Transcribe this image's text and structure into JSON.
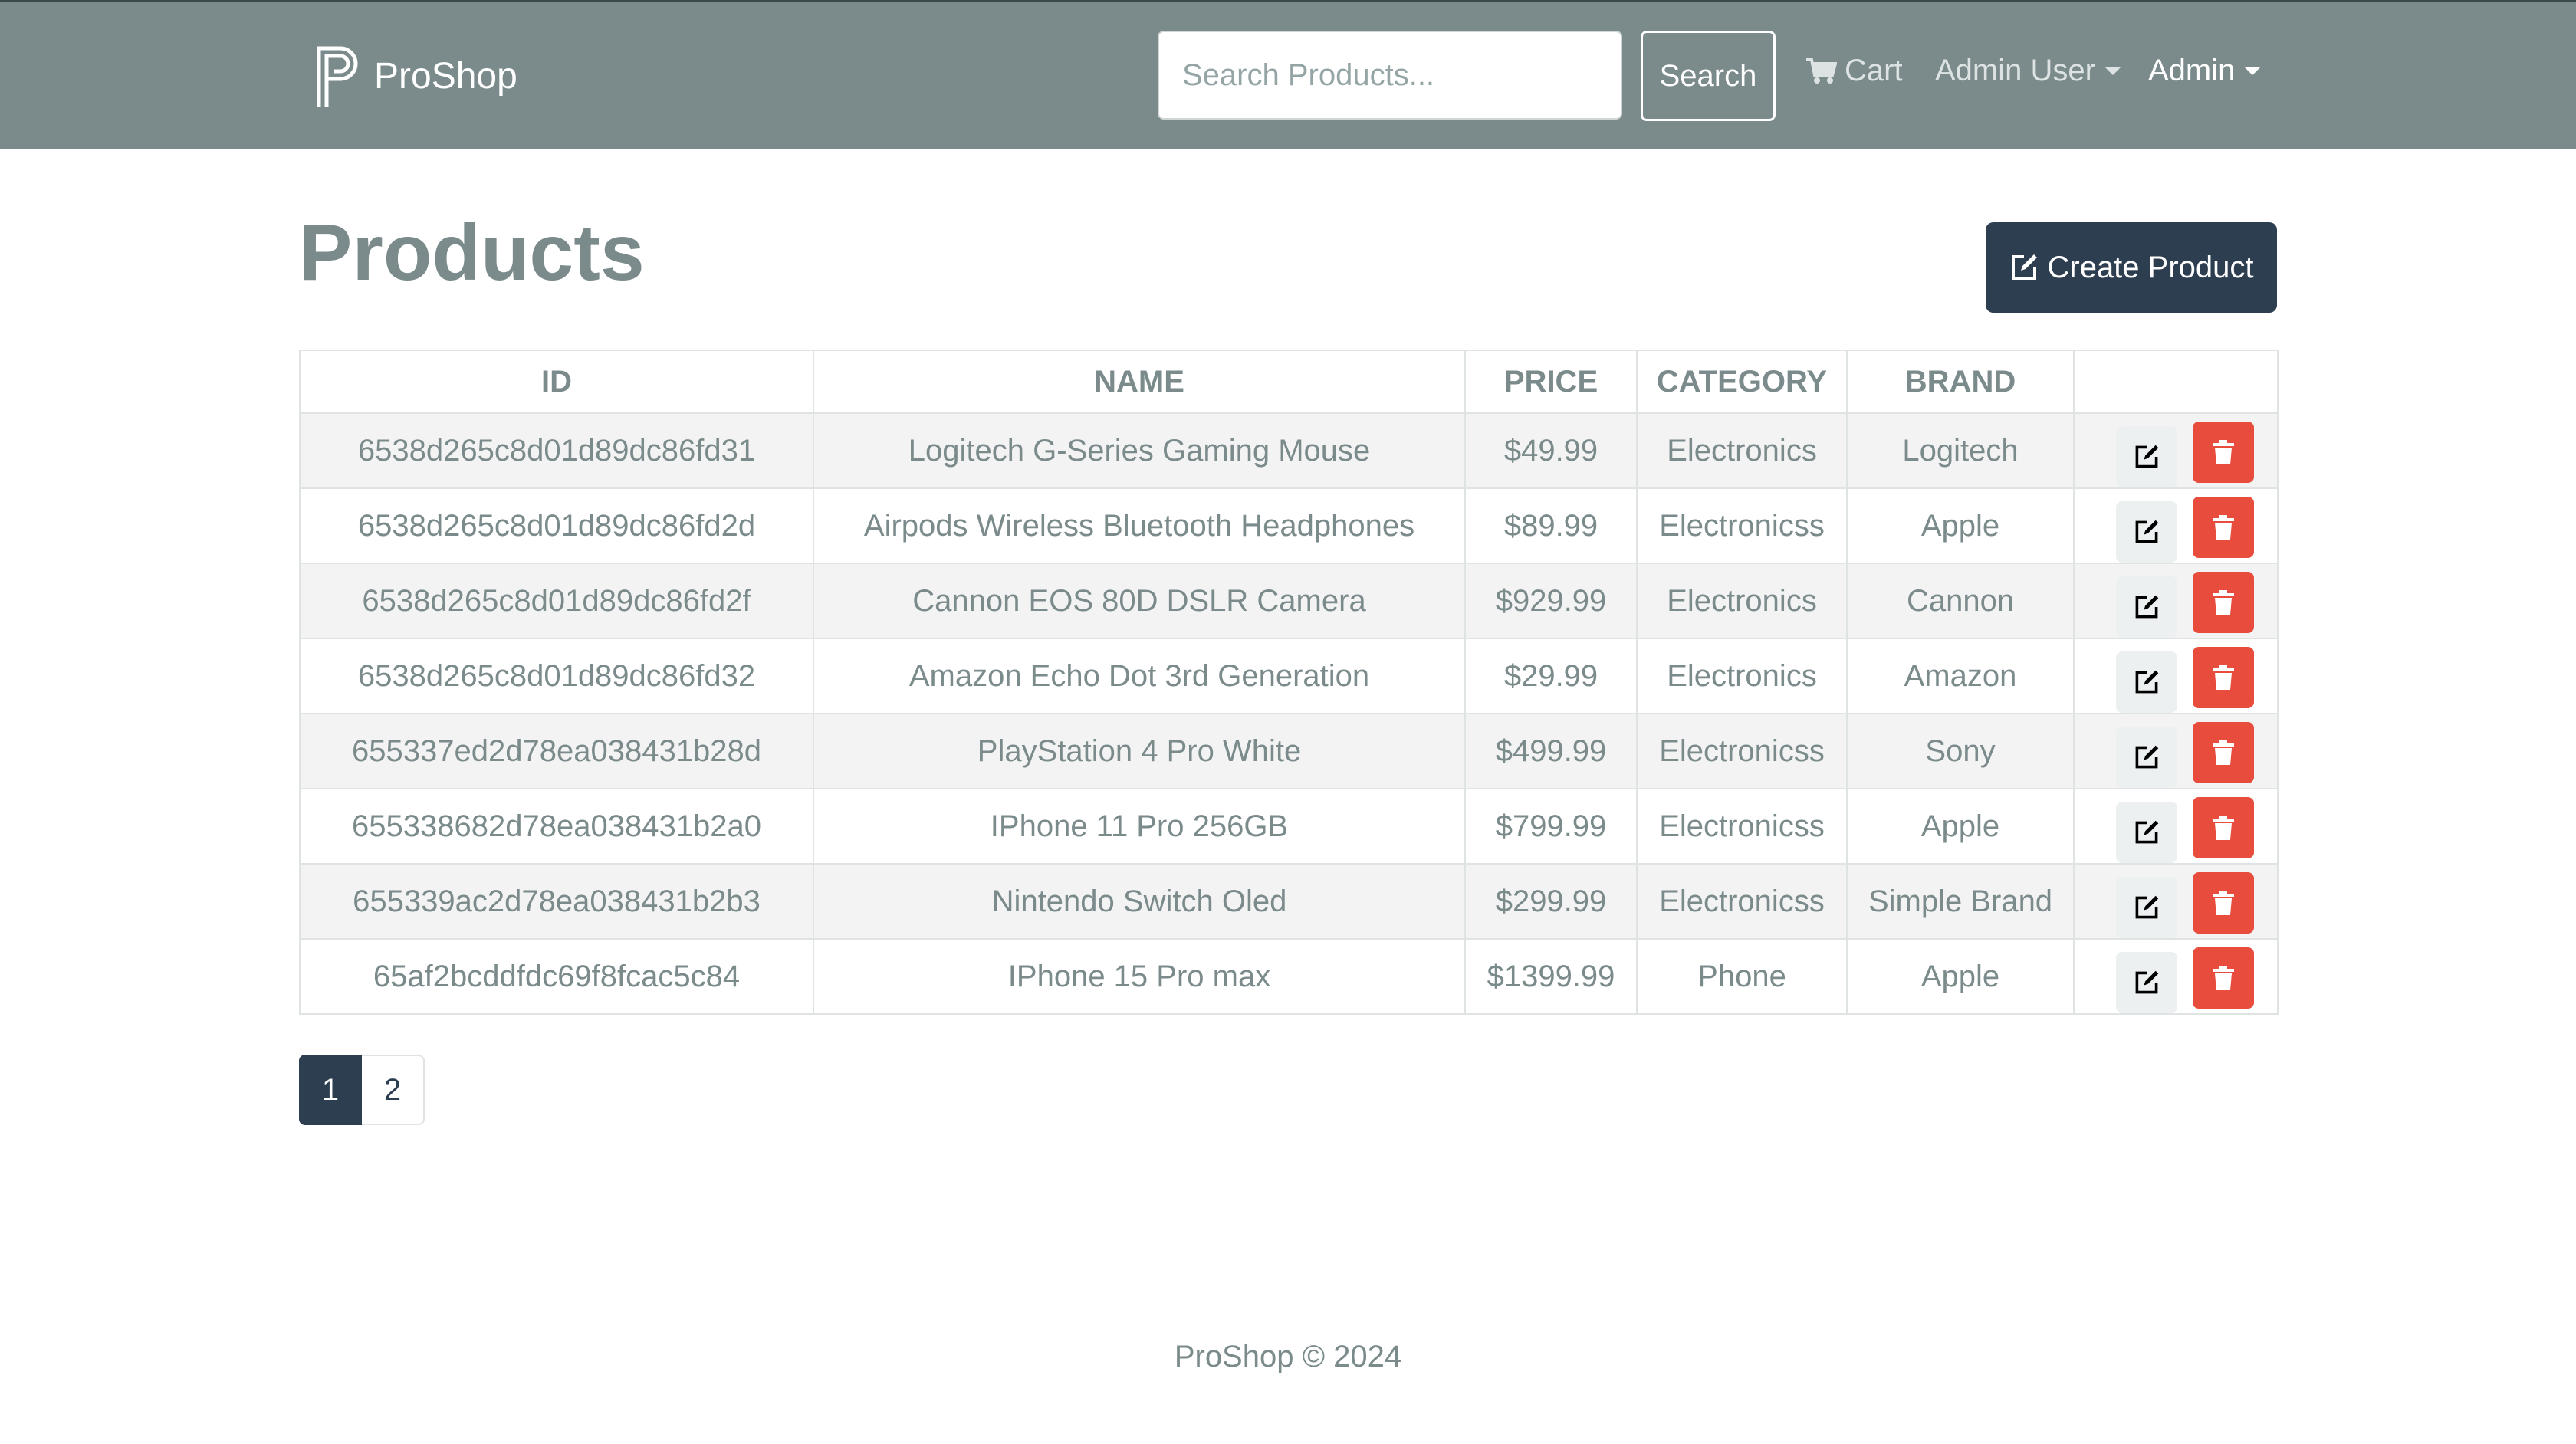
{
  "navbar": {
    "brand": "ProShop",
    "search_placeholder": "Search Products...",
    "search_button": "Search",
    "cart_label": "Cart",
    "user_menu_label": "Admin User",
    "admin_menu_label": "Admin",
    "background_color": "#7b8a8b"
  },
  "page": {
    "title": "Products",
    "create_button": "Create Product"
  },
  "table": {
    "headers": {
      "id": "ID",
      "name": "NAME",
      "price": "PRICE",
      "category": "CATEGORY",
      "brand": "BRAND"
    },
    "rows": [
      {
        "id": "6538d265c8d01d89dc86fd31",
        "name": "Logitech G-Series Gaming Mouse",
        "price": "$49.99",
        "category": "Electronics",
        "brand": "Logitech"
      },
      {
        "id": "6538d265c8d01d89dc86fd2d",
        "name": "Airpods Wireless Bluetooth Headphones",
        "price": "$89.99",
        "category": "Electronicss",
        "brand": "Apple"
      },
      {
        "id": "6538d265c8d01d89dc86fd2f",
        "name": "Cannon EOS 80D DSLR Camera",
        "price": "$929.99",
        "category": "Electronics",
        "brand": "Cannon"
      },
      {
        "id": "6538d265c8d01d89dc86fd32",
        "name": "Amazon Echo Dot 3rd Generation",
        "price": "$29.99",
        "category": "Electronics",
        "brand": "Amazon"
      },
      {
        "id": "655337ed2d78ea038431b28d",
        "name": "PlayStation 4 Pro White",
        "price": "$499.99",
        "category": "Electronicss",
        "brand": "Sony"
      },
      {
        "id": "655338682d78ea038431b2a0",
        "name": "IPhone 11 Pro 256GB",
        "price": "$799.99",
        "category": "Electronicss",
        "brand": "Apple"
      },
      {
        "id": "655339ac2d78ea038431b2b3",
        "name": "Nintendo Switch Oled",
        "price": "$299.99",
        "category": "Electronicss",
        "brand": "Simple Brand"
      },
      {
        "id": "65af2bcddfdc69f8fcac5c84",
        "name": "IPhone 15 Pro max",
        "price": "$1399.99",
        "category": "Phone",
        "brand": "Apple"
      }
    ],
    "row_icons": {
      "edit": "edit-icon",
      "delete": "trash-icon"
    },
    "delete_color": "#e74c3c"
  },
  "pagination": {
    "pages": [
      "1",
      "2"
    ],
    "active": "1"
  },
  "footer": {
    "text": "ProShop © 2024"
  },
  "colors": {
    "primary": "#2c3e50",
    "text": "#7b8a8b",
    "danger": "#e74c3c"
  }
}
